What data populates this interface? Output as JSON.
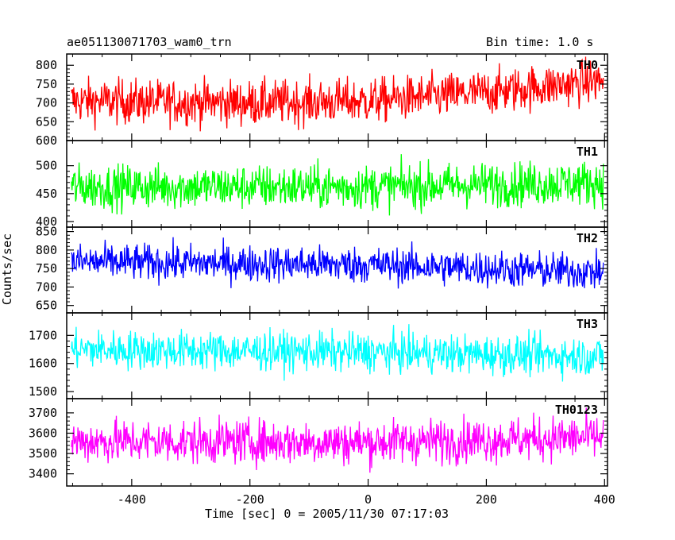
{
  "chart_data": {
    "type": "line",
    "title": "ae051130071703_wam0_trn",
    "subtitle": "Bin time: 1.0 s",
    "xlabel": "Time [sec] 0 = 2005/11/30 07:17:03",
    "ylabel": "Counts/sec",
    "xlim": [
      -510,
      405
    ],
    "xticks": [
      -400,
      -200,
      0,
      200,
      400
    ],
    "x_start": -502,
    "x_end": 398,
    "x_step": 1,
    "grid": false,
    "panels": [
      {
        "name": "TH0",
        "color": "#ff0000",
        "ylim": [
          600,
          830
        ],
        "yticks": [
          600,
          650,
          700,
          750,
          800
        ],
        "trend": [
          [
            -500,
            705
          ],
          [
            -200,
            700
          ],
          [
            0,
            705
          ],
          [
            200,
            728
          ],
          [
            400,
            760
          ]
        ],
        "amplitude": 30
      },
      {
        "name": "TH1",
        "color": "#00ff00",
        "ylim": [
          390,
          545
        ],
        "yticks": [
          400,
          450,
          500
        ],
        "trend": [
          [
            -500,
            462
          ],
          [
            0,
            462
          ],
          [
            400,
            470
          ]
        ],
        "amplitude": 20
      },
      {
        "name": "TH2",
        "color": "#0000ff",
        "ylim": [
          630,
          862
        ],
        "yticks": [
          650,
          700,
          750,
          800,
          850
        ],
        "trend": [
          [
            -500,
            768
          ],
          [
            0,
            760
          ],
          [
            400,
            740
          ]
        ],
        "amplitude": 25
      },
      {
        "name": "TH3",
        "color": "#00ffff",
        "ylim": [
          1475,
          1780
        ],
        "yticks": [
          1500,
          1600,
          1700
        ],
        "trend": [
          [
            -500,
            1650
          ],
          [
            0,
            1640
          ],
          [
            400,
            1625
          ]
        ],
        "amplitude": 35
      },
      {
        "name": "TH0123",
        "color": "#ff00ff",
        "ylim": [
          3340,
          3770
        ],
        "yticks": [
          3400,
          3500,
          3600,
          3700
        ],
        "trend": [
          [
            -500,
            3560
          ],
          [
            0,
            3555
          ],
          [
            400,
            3580
          ]
        ],
        "amplitude": 55
      }
    ]
  }
}
